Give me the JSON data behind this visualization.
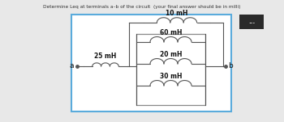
{
  "title": "Determine Leq at terminals a–b of the circuit  (your final answer should be in milli)",
  "labels": {
    "L10": "10 mH",
    "L25": "25 mH",
    "L60": "60 mH",
    "L20": "20 mH",
    "L30": "30 mH"
  },
  "bg_color": "#e8e8e8",
  "outer_box_color": "#5aabdc",
  "inner_box_color": "#888888",
  "wire_color": "#555555",
  "text_color": "#111111",
  "title_color": "#333333"
}
